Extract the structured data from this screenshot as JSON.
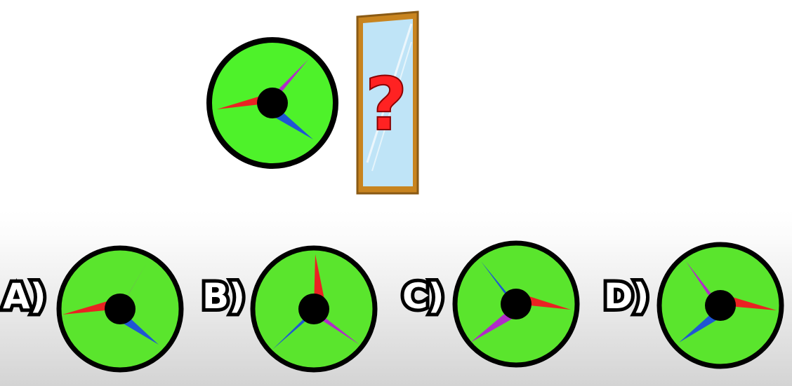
{
  "question": {
    "mirror_symbol": "?"
  },
  "options": [
    {
      "label": "A)"
    },
    {
      "label": "B)"
    },
    {
      "label": "C)"
    },
    {
      "label": "D)"
    }
  ],
  "colors": {
    "dial_fill": "#4ef22a",
    "dial_fill_options": "#5ae52d",
    "dial_outline": "#000000",
    "hub": "#000000",
    "needle_red": "#ea2222",
    "needle_purple": "#b12bc8",
    "needle_blue": "#1f56d4",
    "mirror_frame": "#c8841f",
    "mirror_frame_edge": "#8a5a14",
    "mirror_glass": "#bfe4f7",
    "question_mark": "#ff2222"
  }
}
